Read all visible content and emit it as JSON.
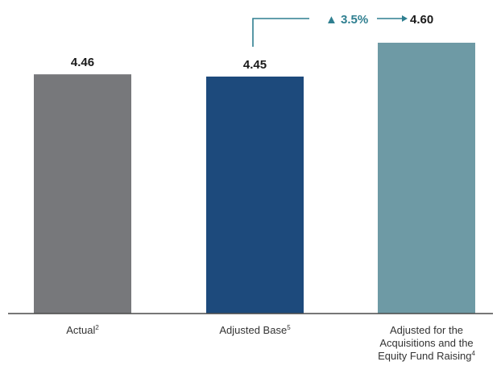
{
  "chart_data": {
    "type": "bar",
    "categories": [
      {
        "lines": [
          "Actual"
        ],
        "footnote": "2"
      },
      {
        "lines": [
          "Adjusted Base"
        ],
        "footnote": "5"
      },
      {
        "lines": [
          "Adjusted for the",
          "Acquisitions and the",
          "Equity Fund Raising"
        ],
        "footnote": "4"
      }
    ],
    "values": [
      4.46,
      4.45,
      4.6
    ],
    "value_labels": [
      "4.46",
      "4.45",
      "4.60"
    ],
    "colors": [
      "#77787b",
      "#1d4a7c",
      "#6e9aa5"
    ],
    "baseline_color": "#4a4a4a",
    "axis_visible": false,
    "grid": false,
    "change_annotation": {
      "from_index": 1,
      "to_index": 2,
      "arrow_symbol": "▲",
      "text": "3.5%",
      "color": "#2f7f90"
    }
  }
}
